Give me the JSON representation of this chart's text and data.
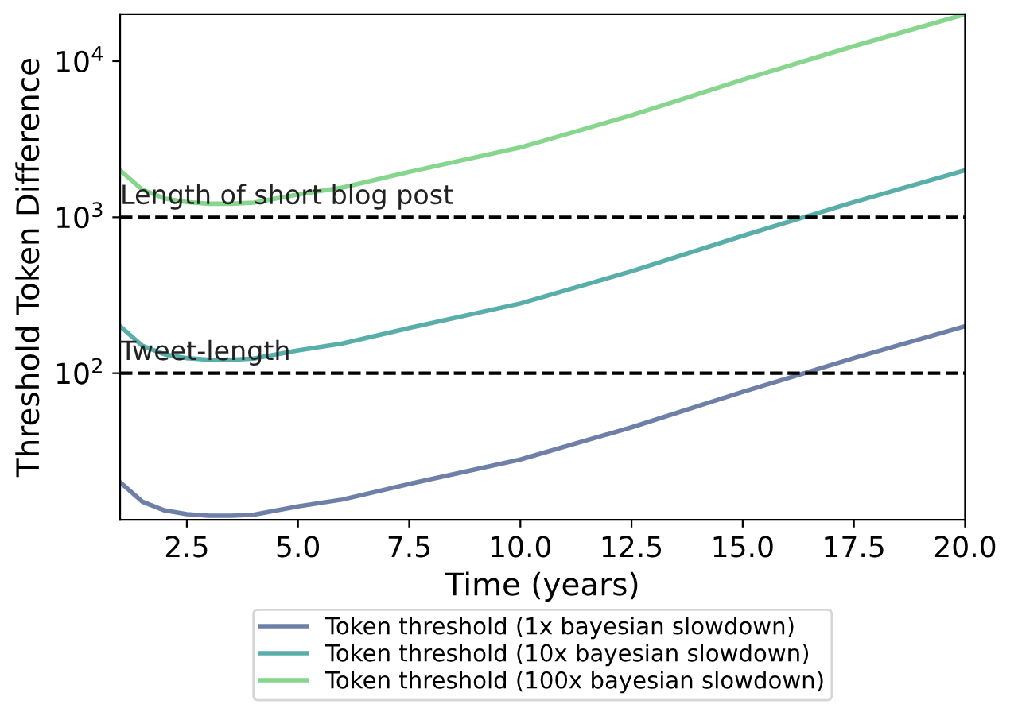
{
  "chart_data": {
    "type": "line",
    "xlabel": "Time (years)",
    "ylabel": "Threshold Token Difference",
    "x": [
      1,
      1.5,
      2,
      2.5,
      3,
      3.5,
      4,
      5,
      6,
      7.5,
      10,
      12.5,
      15,
      17.5,
      20
    ],
    "series": [
      {
        "name": "Token threshold (1x bayesian slowdown)",
        "color": "#6e7fa8",
        "values": [
          20,
          15,
          13.2,
          12.5,
          12.2,
          12.2,
          12.4,
          14,
          15.5,
          19.5,
          28,
          45,
          76,
          125,
          200
        ]
      },
      {
        "name": "Token threshold (10x bayesian slowdown)",
        "color": "#5aaea9",
        "values": [
          200,
          150,
          132,
          125,
          122,
          122,
          124,
          140,
          155,
          195,
          280,
          450,
          760,
          1250,
          2000
        ]
      },
      {
        "name": "Token threshold (100x bayesian slowdown)",
        "color": "#87d68d",
        "values": [
          2000,
          1500,
          1320,
          1250,
          1220,
          1220,
          1240,
          1400,
          1550,
          1950,
          2800,
          4500,
          7600,
          12500,
          20000
        ]
      }
    ],
    "xlim": [
      1,
      20
    ],
    "xticks": [
      {
        "value": 2.5,
        "label": "2.5"
      },
      {
        "value": 5,
        "label": "5.0"
      },
      {
        "value": 7.5,
        "label": "7.5"
      },
      {
        "value": 10,
        "label": "10.0"
      },
      {
        "value": 12.5,
        "label": "12.5"
      },
      {
        "value": 15,
        "label": "15.0"
      },
      {
        "value": 17.5,
        "label": "17.5"
      },
      {
        "value": 20,
        "label": "20.0"
      }
    ],
    "log": "y",
    "ylim": [
      11.5,
      20000
    ],
    "yticks": [
      {
        "value": 100,
        "label": "10$^{2}$"
      },
      {
        "value": 1000,
        "label": "10$^{3}$"
      },
      {
        "value": 10000,
        "label": "10$^{4}$"
      }
    ],
    "ref_lines": [
      {
        "axis": "y",
        "value": 100,
        "label": "Tweet-length",
        "color": "#000000",
        "line_style": "dashed"
      },
      {
        "axis": "y",
        "value": 1000,
        "label": "Length of short blog post",
        "color": "#000000",
        "line_style": "dashed"
      }
    ],
    "legend": "bottom",
    "grid": false
  }
}
